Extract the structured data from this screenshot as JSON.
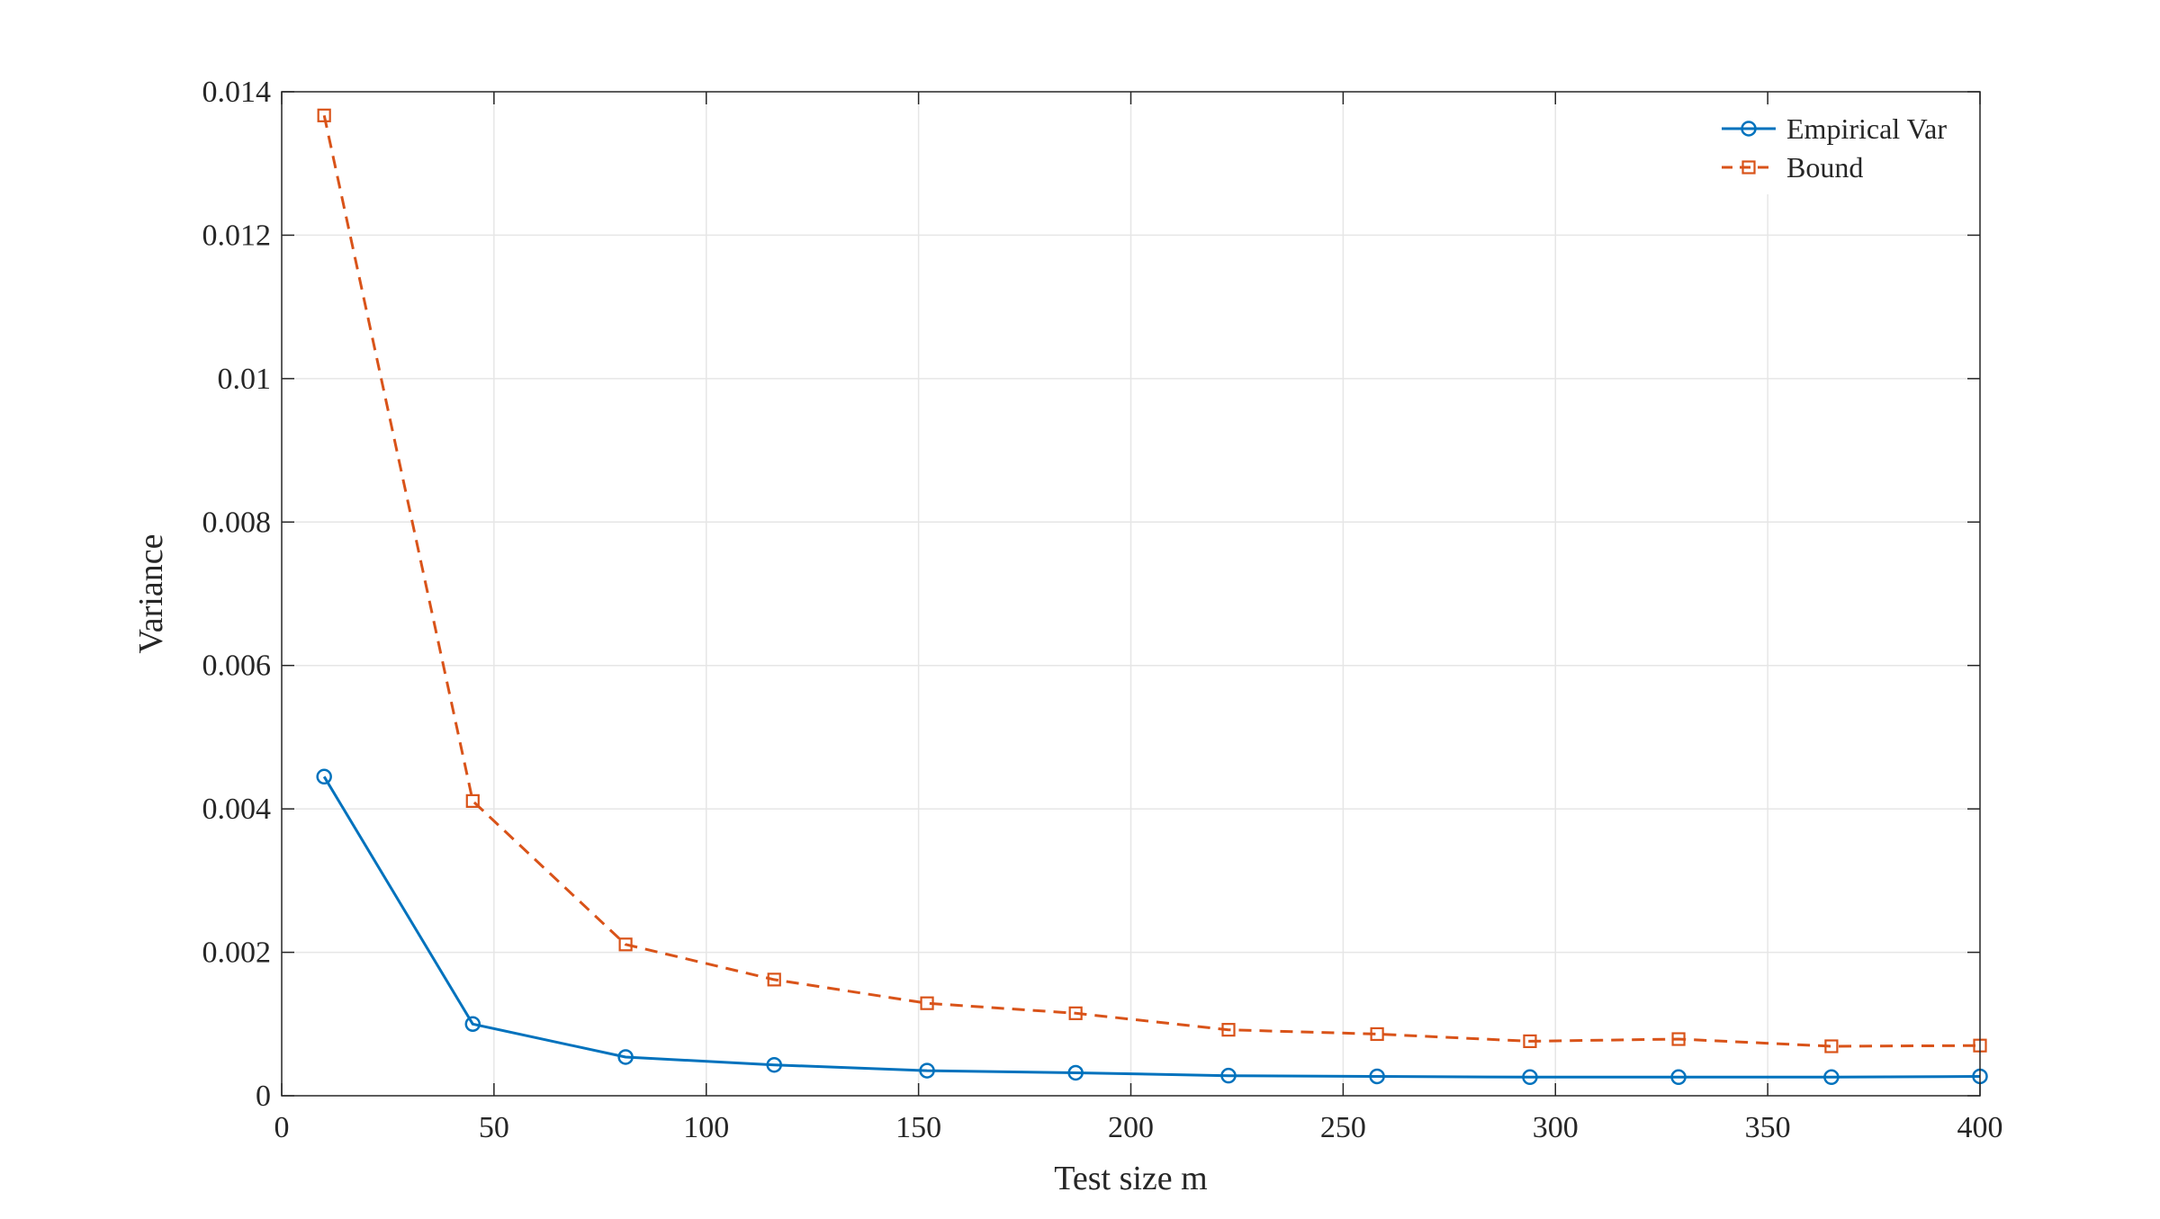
{
  "chart_data": {
    "type": "line",
    "title": "",
    "xlabel": "Test size m",
    "ylabel": "Variance",
    "xlim": [
      0,
      400
    ],
    "ylim": [
      0,
      0.014
    ],
    "xticks": [
      0,
      50,
      100,
      150,
      200,
      250,
      300,
      350,
      400
    ],
    "yticks": [
      0,
      0.002,
      0.004,
      0.006,
      0.008,
      0.01,
      0.012,
      0.014
    ],
    "xtick_labels": [
      "0",
      "50",
      "100",
      "150",
      "200",
      "250",
      "300",
      "350",
      "400"
    ],
    "ytick_labels": [
      "0",
      "0.002",
      "0.004",
      "0.006",
      "0.008",
      "0.01",
      "0.012",
      "0.014"
    ],
    "grid": true,
    "legend_position": "top-right",
    "x": [
      10,
      45,
      81,
      116,
      152,
      187,
      223,
      258,
      294,
      329,
      365,
      400
    ],
    "series": [
      {
        "name": "Empirical Var",
        "color": "#0072BD",
        "marker": "circle",
        "line_style": "solid",
        "values": [
          0.00445,
          0.001,
          0.00054,
          0.00043,
          0.00035,
          0.00032,
          0.00028,
          0.00027,
          0.00026,
          0.00026,
          0.00026,
          0.00027
        ]
      },
      {
        "name": "Bound",
        "color": "#D95319",
        "marker": "square",
        "line_style": "dashed",
        "values": [
          0.01367,
          0.00411,
          0.00211,
          0.00162,
          0.00129,
          0.00115,
          0.00092,
          0.00086,
          0.00076,
          0.00079,
          0.00069,
          0.0007
        ]
      }
    ]
  }
}
